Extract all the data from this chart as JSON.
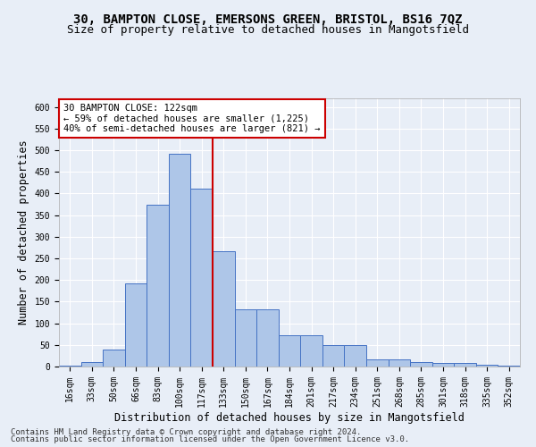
{
  "title_line1": "30, BAMPTON CLOSE, EMERSONS GREEN, BRISTOL, BS16 7QZ",
  "title_line2": "Size of property relative to detached houses in Mangotsfield",
  "xlabel": "Distribution of detached houses by size in Mangotsfield",
  "ylabel": "Number of detached properties",
  "bin_labels": [
    "16sqm",
    "33sqm",
    "50sqm",
    "66sqm",
    "83sqm",
    "100sqm",
    "117sqm",
    "133sqm",
    "150sqm",
    "167sqm",
    "184sqm",
    "201sqm",
    "217sqm",
    "234sqm",
    "251sqm",
    "268sqm",
    "285sqm",
    "301sqm",
    "318sqm",
    "335sqm",
    "352sqm"
  ],
  "bar_values": [
    2,
    10,
    40,
    193,
    375,
    492,
    411,
    267,
    132,
    132,
    73,
    73,
    50,
    50,
    17,
    17,
    10,
    8,
    8,
    5,
    3
  ],
  "bar_color": "#aec6e8",
  "bar_edge_color": "#4472c4",
  "vline_x": 6.5,
  "vline_color": "#cc0000",
  "annotation_text": "30 BAMPTON CLOSE: 122sqm\n← 59% of detached houses are smaller (1,225)\n40% of semi-detached houses are larger (821) →",
  "annotation_box_color": "#ffffff",
  "annotation_box_edge_color": "#cc0000",
  "ylim": [
    0,
    620
  ],
  "yticks": [
    0,
    50,
    100,
    150,
    200,
    250,
    300,
    350,
    400,
    450,
    500,
    550,
    600
  ],
  "footnote1": "Contains HM Land Registry data © Crown copyright and database right 2024.",
  "footnote2": "Contains public sector information licensed under the Open Government Licence v3.0.",
  "background_color": "#e8eef7",
  "grid_color": "#ffffff",
  "title_fontsize": 10,
  "subtitle_fontsize": 9,
  "axis_label_fontsize": 8.5,
  "tick_fontsize": 7,
  "footnote_fontsize": 6.5,
  "annotation_fontsize": 7.5
}
